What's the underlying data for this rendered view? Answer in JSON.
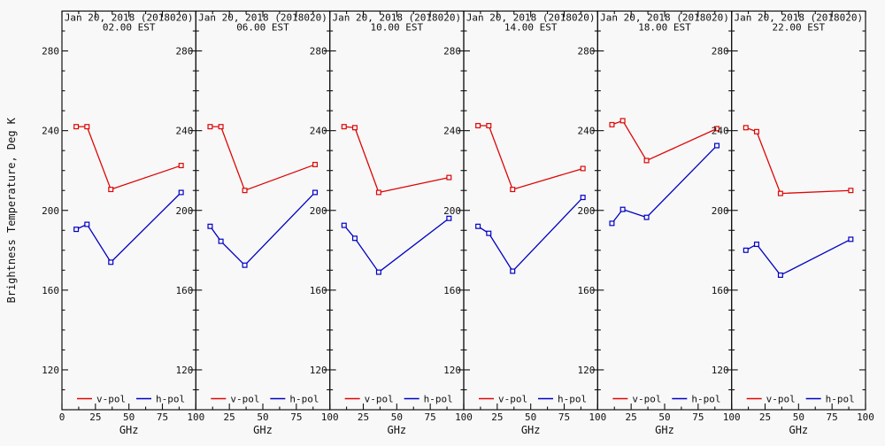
{
  "colors": {
    "vpol": "#dd0606",
    "hpol": "#0000c4",
    "axis": "#111111",
    "background": "#f8f8f8"
  },
  "chart_data": {
    "type": "line",
    "layout": "6 side-by-side panels, shared y-axis label, legend inside each panel bottom",
    "ylabel": "Brightness Temperature, Deg K",
    "xlabel": "GHz",
    "xlim": [
      0,
      100
    ],
    "ylim": [
      100,
      300
    ],
    "x_major_ticks": [
      0,
      25,
      50,
      75,
      100
    ],
    "x_minor_step": 12.5,
    "y_major_ticks": [
      120,
      160,
      200,
      240,
      280
    ],
    "y_minor_step": 10,
    "x": [
      10.65,
      18.7,
      36.5,
      89
    ],
    "legend": [
      {
        "label": "v-pol",
        "color": "#dd0606"
      },
      {
        "label": "h-pol",
        "color": "#0000c4"
      }
    ],
    "panels": [
      {
        "title_line1": "Jan 20, 2018 (2018020)",
        "title_line2": "02.00 EST",
        "series": [
          {
            "name": "v-pol",
            "values": [
              242,
              242,
              210.5,
              222.5
            ]
          },
          {
            "name": "h-pol",
            "values": [
              190.5,
              193,
              174,
              209
            ]
          }
        ]
      },
      {
        "title_line1": "Jan 20, 2018 (2018020)",
        "title_line2": "06.00 EST",
        "series": [
          {
            "name": "v-pol",
            "values": [
              242,
              242,
              210,
              223
            ]
          },
          {
            "name": "h-pol",
            "values": [
              192,
              184.5,
              172.5,
              209
            ]
          }
        ]
      },
      {
        "title_line1": "Jan 20, 2018 (2018020)",
        "title_line2": "10.00 EST",
        "series": [
          {
            "name": "v-pol",
            "values": [
              242,
              241.5,
              209,
              216.5
            ]
          },
          {
            "name": "h-pol",
            "values": [
              192.5,
              186,
              169,
              196
            ]
          }
        ]
      },
      {
        "title_line1": "Jan 20, 2018 (2018020)",
        "title_line2": "14.00 EST",
        "series": [
          {
            "name": "v-pol",
            "values": [
              242.5,
              242.5,
              210.5,
              221
            ]
          },
          {
            "name": "h-pol",
            "values": [
              192,
              188.5,
              169.5,
              206.5
            ]
          }
        ]
      },
      {
        "title_line1": "Jan 20, 2018 (2018020)",
        "title_line2": "18.00 EST",
        "series": [
          {
            "name": "v-pol",
            "values": [
              243,
              245,
              225,
              241
            ]
          },
          {
            "name": "h-pol",
            "values": [
              193.5,
              200.5,
              196.5,
              232.5
            ]
          }
        ]
      },
      {
        "title_line1": "Jan 20, 2018 (2018020)",
        "title_line2": "22.00 EST",
        "series": [
          {
            "name": "v-pol",
            "values": [
              241.5,
              239.5,
              208.5,
              210
            ]
          },
          {
            "name": "h-pol",
            "values": [
              180,
              183,
              167.5,
              185.5
            ]
          }
        ]
      }
    ]
  }
}
